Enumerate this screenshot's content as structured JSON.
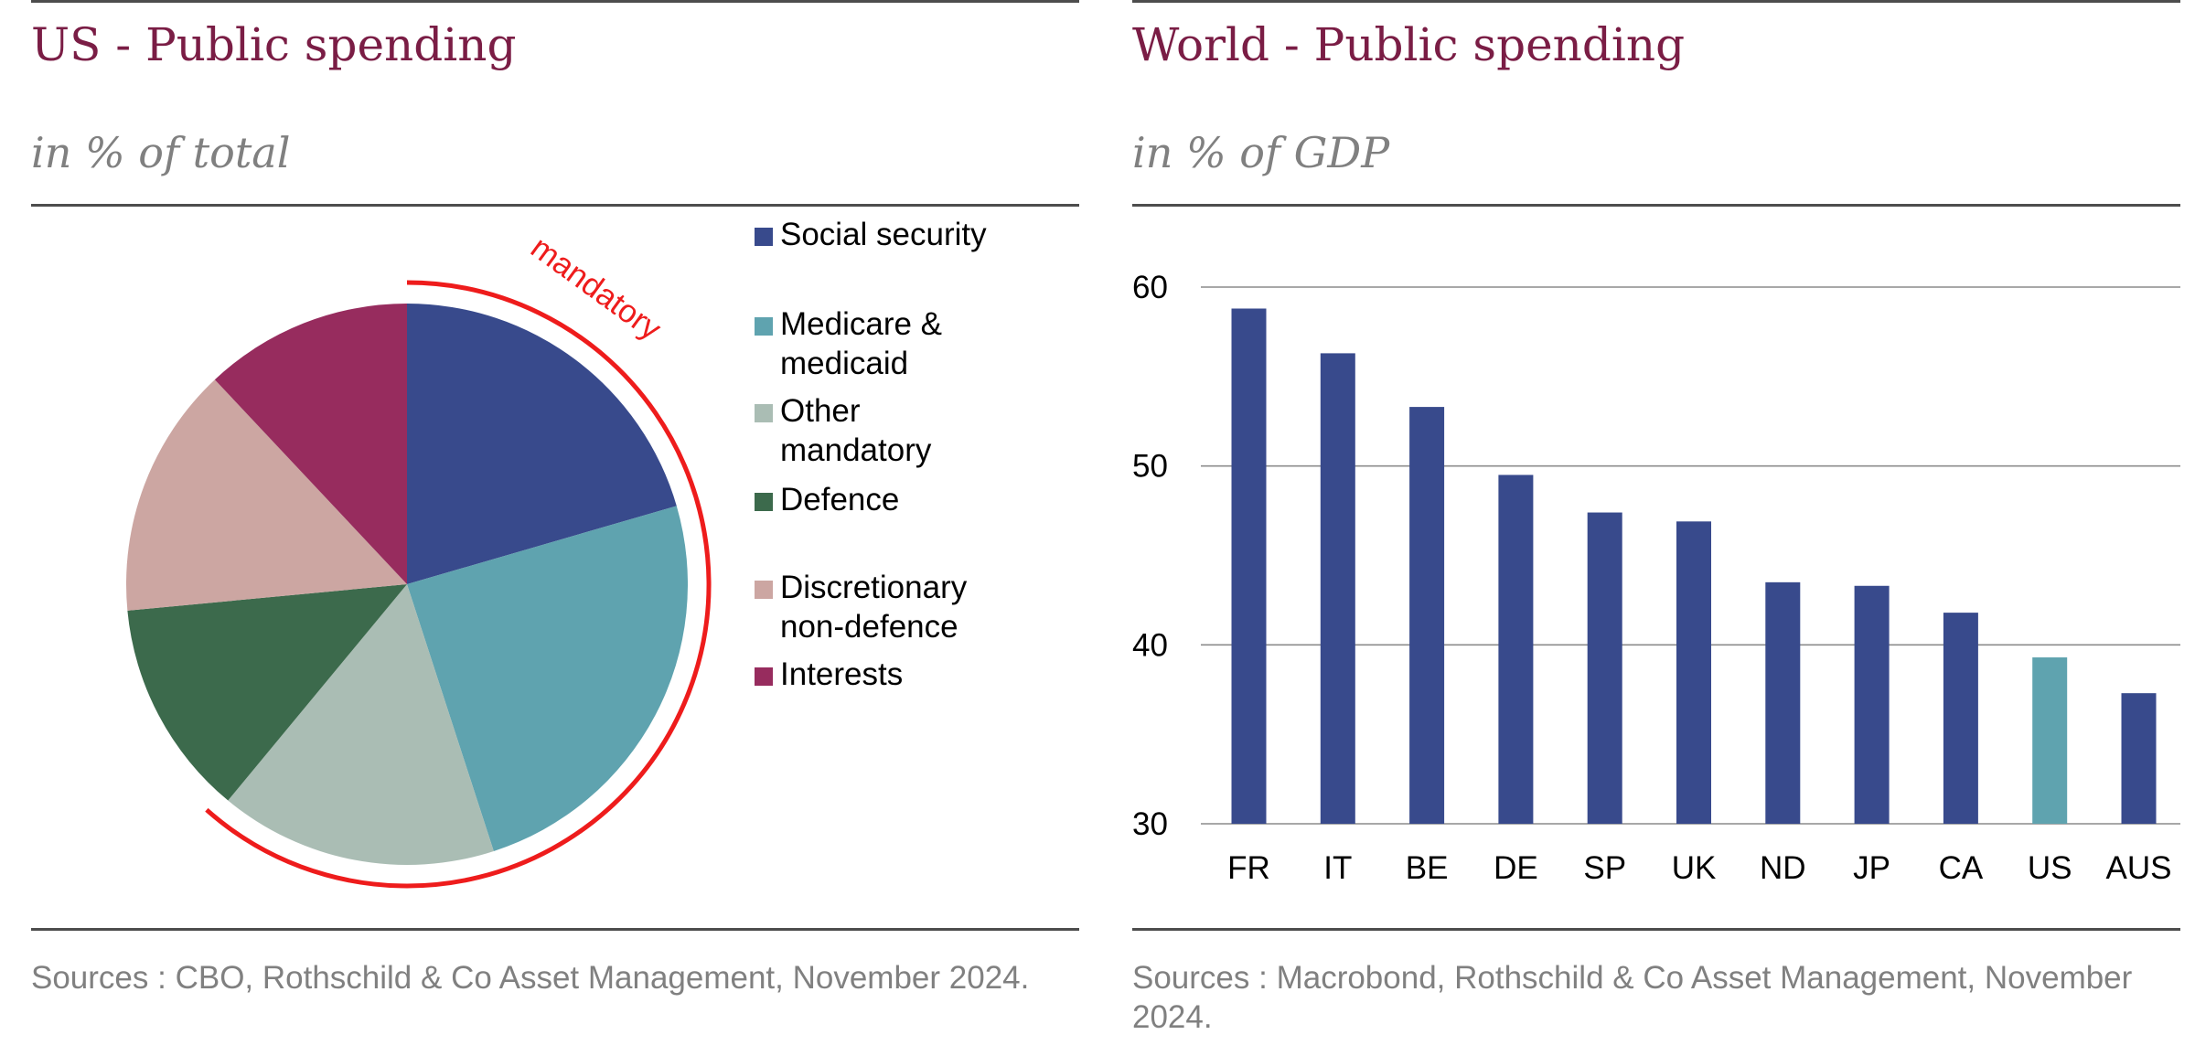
{
  "us_panel": {
    "title": "US - Public spending",
    "subtitle": "in % of total",
    "annotation": "mandatory",
    "source": "Sources : CBO, Rothschild & Co Asset Management, November 2024."
  },
  "world_panel": {
    "title": "World - Public spending",
    "subtitle": "in % of GDP",
    "source": "Sources : Macrobond, Rothschild & Co Asset Management, November 2024."
  },
  "colors": {
    "title": "#7a1d45",
    "annotation": "#ee1c1c",
    "bar_default": "#384a8c",
    "bar_highlight": "#5fa3af"
  },
  "chart_data": [
    {
      "type": "pie",
      "start": "12 o'clock, clockwise",
      "slices": [
        {
          "label": "Social security",
          "value": 20.5,
          "color": "#384a8c",
          "legend_lines": [
            "Social security"
          ]
        },
        {
          "label": "Medicare & medicaid",
          "value": 24.5,
          "color": "#5fa3af",
          "legend_lines": [
            "Medicare &",
            "medicaid"
          ]
        },
        {
          "label": "Other mandatory",
          "value": 16,
          "color": "#aabdb4",
          "legend_lines": [
            "Other",
            "mandatory"
          ]
        },
        {
          "label": "Defence",
          "value": 12.5,
          "color": "#3c6a4c",
          "legend_lines": [
            "Defence"
          ]
        },
        {
          "label": "Discretionary non-defence",
          "value": 14.5,
          "color": "#cca6a2",
          "legend_lines": [
            "Discretionary",
            "non-defence"
          ]
        },
        {
          "label": "Interests",
          "value": 12,
          "color": "#972c5e",
          "legend_lines": [
            "Interests"
          ]
        }
      ],
      "legend_position": "right"
    },
    {
      "type": "bar",
      "categories": [
        "FR",
        "IT",
        "BE",
        "DE",
        "SP",
        "UK",
        "ND",
        "JP",
        "CA",
        "US",
        "AUS"
      ],
      "values": [
        58.8,
        56.3,
        53.3,
        49.5,
        47.4,
        46.9,
        43.5,
        43.3,
        41.8,
        39.3,
        37.3
      ],
      "highlight": "US",
      "ylim": [
        30,
        60
      ],
      "yticks": [
        30,
        40,
        50,
        60
      ],
      "grid": true
    }
  ]
}
